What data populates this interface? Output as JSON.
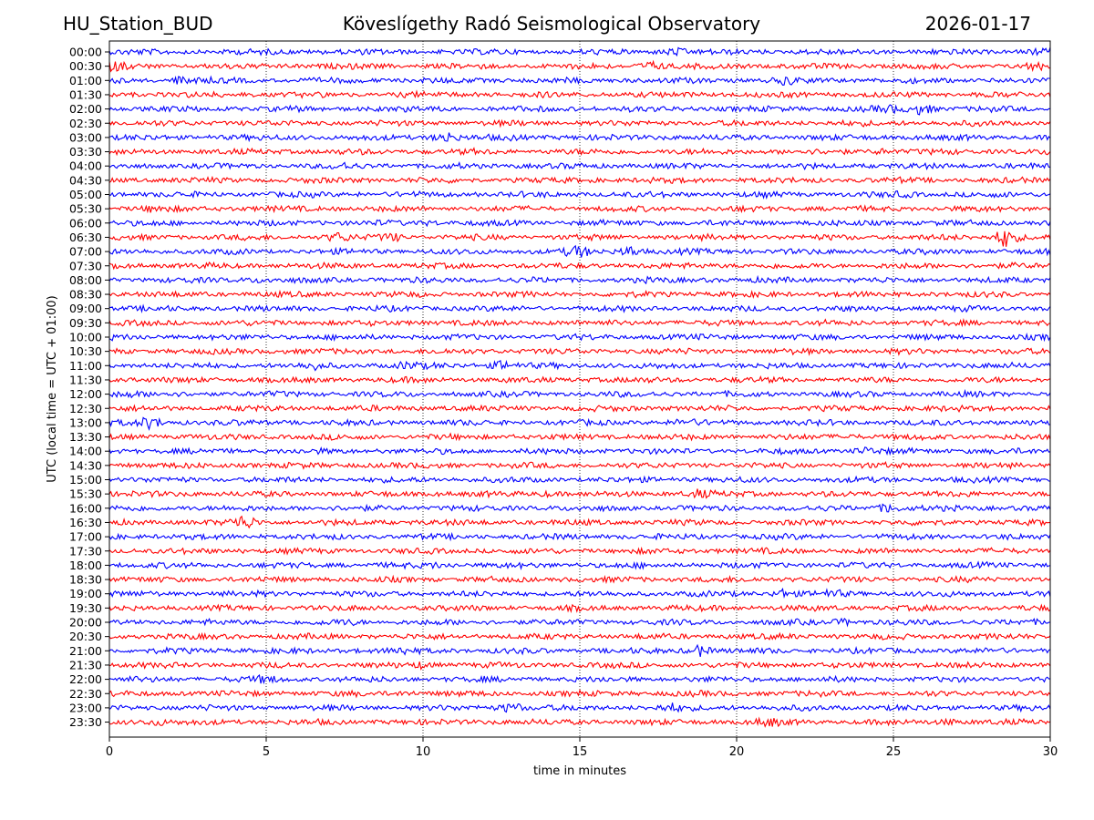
{
  "header": {
    "station": "HU_Station_BUD",
    "observatory": "Köveslígethy Radó Seismological Observatory",
    "date": "2026-01-17"
  },
  "chart_data": {
    "type": "line",
    "title": "Köveslígethy Radó Seismological Observatory",
    "xlabel": "time in minutes",
    "ylabel": "UTC (local time = UTC + 01:00)",
    "xlim": [
      0,
      30
    ],
    "x_ticks": [
      0,
      5,
      10,
      15,
      20,
      25,
      30
    ],
    "x_tick_labels": [
      "0",
      "5",
      "10",
      "15",
      "20",
      "25",
      "30"
    ],
    "grid": "vertical dotted at x ticks",
    "row_labels": [
      "00:00",
      "00:30",
      "01:00",
      "01:30",
      "02:00",
      "02:30",
      "03:00",
      "03:30",
      "04:00",
      "04:30",
      "05:00",
      "05:30",
      "06:00",
      "06:30",
      "07:00",
      "07:30",
      "08:00",
      "08:30",
      "09:00",
      "09:30",
      "10:00",
      "10:30",
      "11:00",
      "11:30",
      "12:00",
      "12:30",
      "13:00",
      "13:30",
      "14:00",
      "14:30",
      "15:00",
      "15:30",
      "16:00",
      "16:30",
      "17:00",
      "17:30",
      "18:00",
      "18:30",
      "19:00",
      "19:30",
      "20:00",
      "20:30",
      "21:00",
      "21:30",
      "22:00",
      "22:30",
      "23:00",
      "23:30"
    ],
    "colors": [
      "#0000ff",
      "#ff0000"
    ],
    "events": [
      {
        "row": 0,
        "t": 18.0,
        "amp": 2.2
      },
      {
        "row": 0,
        "t": 29.9,
        "amp": 2.5
      },
      {
        "row": 1,
        "t": 17.3,
        "amp": 2.4
      },
      {
        "row": 1,
        "t": 0.2,
        "amp": 2.0
      },
      {
        "row": 1,
        "t": 29.5,
        "amp": 1.8
      },
      {
        "row": 2,
        "t": 2.4,
        "amp": 2.4
      },
      {
        "row": 2,
        "t": 21.6,
        "amp": 1.9
      },
      {
        "row": 3,
        "t": 9.5,
        "amp": 1.3
      },
      {
        "row": 4,
        "t": 25.9,
        "amp": 2.6
      },
      {
        "row": 4,
        "t": 24.9,
        "amp": 1.8
      },
      {
        "row": 6,
        "t": 10.7,
        "amp": 2.8
      },
      {
        "row": 6,
        "t": 13.0,
        "amp": 1.4
      },
      {
        "row": 7,
        "t": 24.6,
        "amp": 1.5
      },
      {
        "row": 8,
        "t": 7.5,
        "amp": 1.7
      },
      {
        "row": 10,
        "t": 25.3,
        "amp": 1.5
      },
      {
        "row": 11,
        "t": 1.5,
        "amp": 1.7
      },
      {
        "row": 12,
        "t": 10.2,
        "amp": 1.5
      },
      {
        "row": 13,
        "t": 7.3,
        "amp": 2.2
      },
      {
        "row": 13,
        "t": 9.0,
        "amp": 2.0
      },
      {
        "row": 13,
        "t": 28.6,
        "amp": 4.6
      },
      {
        "row": 14,
        "t": 14.9,
        "amp": 2.6
      },
      {
        "row": 14,
        "t": 16.6,
        "amp": 2.7
      },
      {
        "row": 16,
        "t": 4.8,
        "amp": 1.6
      },
      {
        "row": 22,
        "t": 9.5,
        "amp": 2.0
      },
      {
        "row": 22,
        "t": 12.5,
        "amp": 2.4
      },
      {
        "row": 22,
        "t": 6.5,
        "amp": 1.8
      },
      {
        "row": 24,
        "t": 0.5,
        "amp": 1.8
      },
      {
        "row": 26,
        "t": 1.3,
        "amp": 2.8
      },
      {
        "row": 26,
        "t": 18.3,
        "amp": 1.6
      },
      {
        "row": 27,
        "t": 23.5,
        "amp": 1.6
      },
      {
        "row": 28,
        "t": 24.1,
        "amp": 2.0
      },
      {
        "row": 31,
        "t": 18.8,
        "amp": 2.2
      },
      {
        "row": 31,
        "t": 14.0,
        "amp": 1.7
      },
      {
        "row": 32,
        "t": 24.8,
        "amp": 2.4
      },
      {
        "row": 33,
        "t": 4.3,
        "amp": 3.2
      },
      {
        "row": 36,
        "t": 10.5,
        "amp": 1.6
      },
      {
        "row": 38,
        "t": 21.5,
        "amp": 2.3
      },
      {
        "row": 38,
        "t": 23.0,
        "amp": 1.8
      },
      {
        "row": 40,
        "t": 23.4,
        "amp": 1.8
      },
      {
        "row": 40,
        "t": 7.6,
        "amp": 1.5
      },
      {
        "row": 42,
        "t": 18.8,
        "amp": 2.8
      },
      {
        "row": 42,
        "t": 9.3,
        "amp": 1.8
      },
      {
        "row": 43,
        "t": 10.0,
        "amp": 1.8
      },
      {
        "row": 44,
        "t": 5.0,
        "amp": 1.8
      },
      {
        "row": 45,
        "t": 9.5,
        "amp": 1.6
      },
      {
        "row": 46,
        "t": 12.8,
        "amp": 2.6
      },
      {
        "row": 46,
        "t": 17.9,
        "amp": 2.0
      },
      {
        "row": 47,
        "t": 1.5,
        "amp": 1.8
      },
      {
        "row": 47,
        "t": 21.0,
        "amp": 2.1
      },
      {
        "row": 47,
        "t": 26.8,
        "amp": 1.8
      }
    ]
  }
}
